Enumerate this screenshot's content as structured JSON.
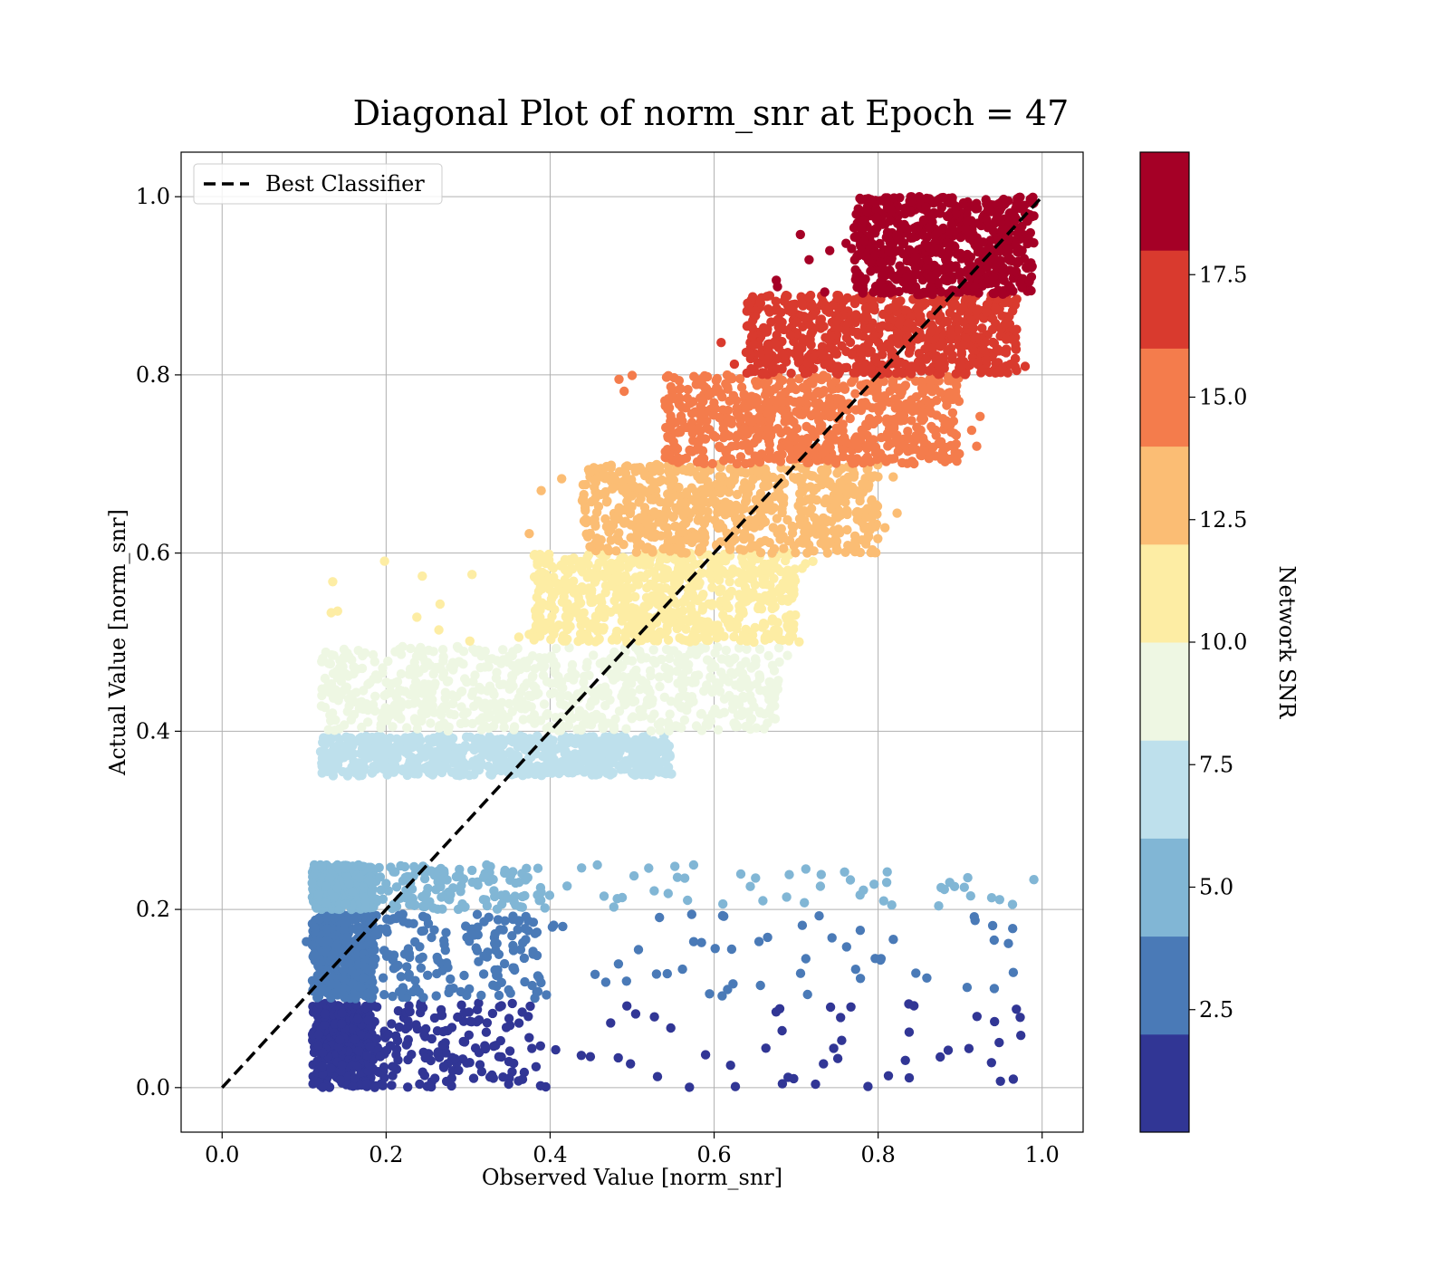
{
  "chart_data": {
    "type": "scatter",
    "title": "Diagonal Plot of norm_snr at Epoch = 47",
    "xlabel": "Observed Value [norm_snr]",
    "ylabel": "Actual Value [norm_snr]",
    "xlim": [
      -0.05,
      1.05
    ],
    "ylim": [
      -0.05,
      1.05
    ],
    "xticks": [
      0.0,
      0.2,
      0.4,
      0.6,
      0.8,
      1.0
    ],
    "xtick_labels": [
      "0.0",
      "0.2",
      "0.4",
      "0.6",
      "0.8",
      "1.0"
    ],
    "yticks": [
      0.0,
      0.2,
      0.4,
      0.6,
      0.8,
      1.0
    ],
    "ytick_labels": [
      "0.0",
      "0.2",
      "0.4",
      "0.6",
      "0.8",
      "1.0"
    ],
    "grid": true,
    "legend": {
      "position": "top-left",
      "entries": [
        "Best Classifier"
      ]
    },
    "reference_line": {
      "name": "Best Classifier",
      "style": "dashed",
      "color": "#000000",
      "x": [
        0.0,
        1.0
      ],
      "y": [
        0.0,
        1.0
      ]
    },
    "colorbar": {
      "label": "Network SNR",
      "range": [
        0,
        20
      ],
      "tick_values": [
        2.5,
        5.0,
        7.5,
        10.0,
        12.5,
        15.0,
        17.5
      ],
      "tick_labels": [
        "2.5",
        "5.0",
        "7.5",
        "10.0",
        "12.5",
        "15.0",
        "17.5"
      ],
      "colors": [
        "#313695",
        "#4a7ab7",
        "#81b6d5",
        "#bee0ec",
        "#eef7e3",
        "#fdeda4",
        "#fbbd74",
        "#f47c4c",
        "#d93a2e",
        "#a50026"
      ]
    },
    "band_summary": [
      {
        "snr_range": [
          0,
          2
        ],
        "actual_range": [
          0.0,
          0.095
        ],
        "observed_range": [
          0.09,
          1.0
        ],
        "dense_observed_range": [
          0.11,
          0.39
        ]
      },
      {
        "snr_range": [
          2,
          4
        ],
        "actual_range": [
          0.1,
          0.195
        ],
        "observed_range": [
          0.1,
          1.0
        ],
        "dense_observed_range": [
          0.11,
          0.39
        ]
      },
      {
        "snr_range": [
          4,
          6
        ],
        "actual_range": [
          0.2,
          0.25
        ],
        "observed_range": [
          0.1,
          1.0
        ],
        "dense_observed_range": [
          0.11,
          0.39
        ]
      },
      {
        "snr_range": [
          6,
          8
        ],
        "actual_range": [
          0.35,
          0.395
        ],
        "observed_range": [
          0.12,
          0.56
        ],
        "dense_observed_range": [
          0.12,
          0.55
        ]
      },
      {
        "snr_range": [
          8,
          10
        ],
        "actual_range": [
          0.4,
          0.495
        ],
        "observed_range": [
          0.12,
          0.7
        ],
        "dense_observed_range": [
          0.12,
          0.68
        ]
      },
      {
        "snr_range": [
          10,
          12
        ],
        "actual_range": [
          0.5,
          0.6
        ],
        "observed_range": [
          0.12,
          0.73
        ],
        "dense_observed_range": [
          0.38,
          0.7
        ]
      },
      {
        "snr_range": [
          12,
          14
        ],
        "actual_range": [
          0.6,
          0.7
        ],
        "observed_range": [
          0.32,
          0.83
        ],
        "dense_observed_range": [
          0.44,
          0.8
        ]
      },
      {
        "snr_range": [
          14,
          16
        ],
        "actual_range": [
          0.7,
          0.8
        ],
        "observed_range": [
          0.44,
          0.93
        ],
        "dense_observed_range": [
          0.54,
          0.9
        ]
      },
      {
        "snr_range": [
          16,
          18
        ],
        "actual_range": [
          0.8,
          0.89
        ],
        "observed_range": [
          0.6,
          0.98
        ],
        "dense_observed_range": [
          0.64,
          0.97
        ]
      },
      {
        "snr_range": [
          18,
          20
        ],
        "actual_range": [
          0.89,
          1.0
        ],
        "observed_range": [
          0.66,
          0.99
        ],
        "dense_observed_range": [
          0.77,
          0.99
        ]
      }
    ]
  }
}
